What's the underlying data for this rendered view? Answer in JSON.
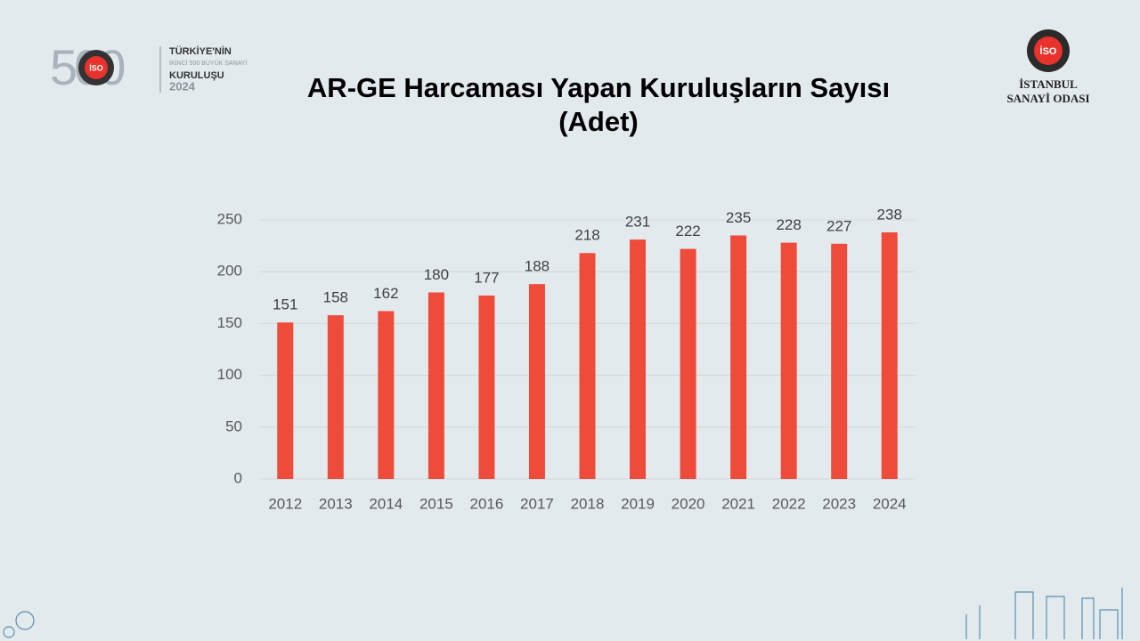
{
  "header": {
    "left_logo": {
      "number": "500",
      "badge": "İSO",
      "line1": "TÜRKİYE'NİN",
      "line2": "İKİNCİ 500 BÜYÜK SANAYİ",
      "line3": "KURULUŞU",
      "year": "2024"
    },
    "right_logo": {
      "badge": "İSO",
      "line1": "İSTANBUL",
      "line2": "SANAYİ ODASI"
    }
  },
  "chart_data": {
    "type": "bar",
    "title": "AR-GE Harcaması Yapan Kuruluşların Sayısı (Adet)",
    "categories": [
      "2012",
      "2013",
      "2014",
      "2015",
      "2016",
      "2017",
      "2018",
      "2019",
      "2020",
      "2021",
      "2022",
      "2023",
      "2024"
    ],
    "values": [
      151,
      158,
      162,
      180,
      177,
      188,
      218,
      231,
      222,
      235,
      228,
      227,
      238
    ],
    "color": "#ee4b3b",
    "ylim": [
      0,
      250
    ],
    "yticks": [
      0,
      50,
      100,
      150,
      200,
      250
    ],
    "grid": true
  }
}
